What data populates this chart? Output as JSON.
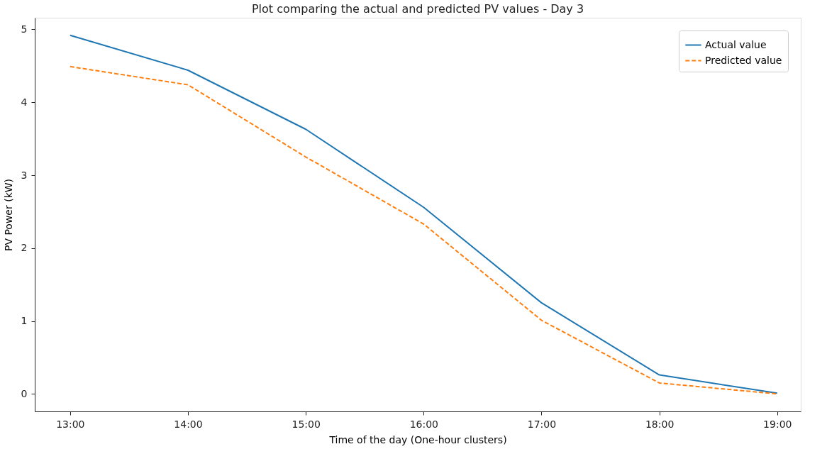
{
  "chart_data": {
    "type": "line",
    "title": "Plot comparing the actual and predicted PV values - Day 3",
    "xlabel": "Time of the day (One-hour clusters)",
    "ylabel": "PV Power (kW)",
    "x": [
      13,
      14,
      15,
      16,
      17,
      18,
      19
    ],
    "series": [
      {
        "name": "Actual value",
        "color": "#1f77b4",
        "line_style": "solid",
        "values": [
          4.92,
          4.44,
          3.63,
          2.56,
          1.25,
          0.26,
          0.01
        ]
      },
      {
        "name": "Predicted value",
        "color": "#ff7f0e",
        "line_style": "dashed",
        "values": [
          4.49,
          4.24,
          3.25,
          2.33,
          1.01,
          0.15,
          0.0
        ]
      }
    ],
    "xlim": [
      12.7,
      19.2
    ],
    "ylim": [
      -0.24,
      5.16
    ],
    "xticks": [
      {
        "value": 13,
        "label": "13:00"
      },
      {
        "value": 14,
        "label": "14:00"
      },
      {
        "value": 15,
        "label": "15:00"
      },
      {
        "value": 16,
        "label": "16:00"
      },
      {
        "value": 17,
        "label": "17:00"
      },
      {
        "value": 18,
        "label": "18:00"
      },
      {
        "value": 19,
        "label": "19:00"
      }
    ],
    "yticks": [
      0,
      1,
      2,
      3,
      4,
      5
    ],
    "grid": false,
    "legend": "top right",
    "marker": "none"
  }
}
